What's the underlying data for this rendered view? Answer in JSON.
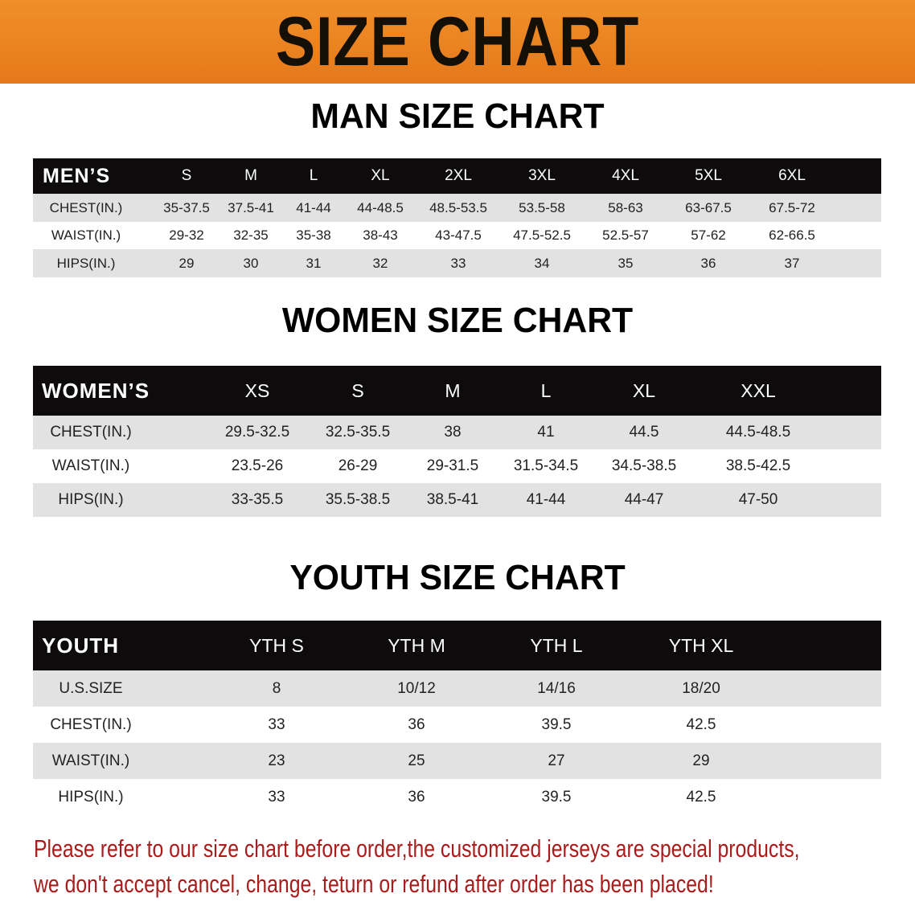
{
  "banner": {
    "title": "SIZE CHART",
    "color": "#e8821e"
  },
  "men": {
    "section_title": "MAN SIZE CHART",
    "header": "MEN’S",
    "sizes": [
      "S",
      "M",
      "L",
      "XL",
      "2XL",
      "3XL",
      "4XL",
      "5XL",
      "6XL"
    ],
    "rows": [
      {
        "label": "CHEST(IN.)",
        "values": [
          "35-37.5",
          "37.5-41",
          "41-44",
          "44-48.5",
          "48.5-53.5",
          "53.5-58",
          "58-63",
          "63-67.5",
          "67.5-72"
        ]
      },
      {
        "label": "WAIST(IN.)",
        "values": [
          "29-32",
          "32-35",
          "35-38",
          "38-43",
          "43-47.5",
          "47.5-52.5",
          "52.5-57",
          "57-62",
          "62-66.5"
        ]
      },
      {
        "label": "HIPS(IN.)",
        "values": [
          "29",
          "30",
          "31",
          "32",
          "33",
          "34",
          "35",
          "36",
          "37"
        ]
      }
    ]
  },
  "women": {
    "section_title": "WOMEN SIZE CHART",
    "header": "WOMEN’S",
    "sizes": [
      "XS",
      "S",
      "M",
      "L",
      "XL",
      "XXL"
    ],
    "rows": [
      {
        "label": "CHEST(IN.)",
        "values": [
          "29.5-32.5",
          "32.5-35.5",
          "38",
          "41",
          "44.5",
          "44.5-48.5"
        ]
      },
      {
        "label": "WAIST(IN.)",
        "values": [
          "23.5-26",
          "26-29",
          "29-31.5",
          "31.5-34.5",
          "34.5-38.5",
          "38.5-42.5"
        ]
      },
      {
        "label": "HIPS(IN.)",
        "values": [
          "33-35.5",
          "35.5-38.5",
          "38.5-41",
          "41-44",
          "44-47",
          "47-50"
        ]
      }
    ]
  },
  "youth": {
    "section_title": "YOUTH SIZE CHART",
    "header": "YOUTH",
    "sizes": [
      "YTH S",
      "YTH M",
      "YTH L",
      "YTH XL"
    ],
    "rows": [
      {
        "label": "U.S.SIZE",
        "values": [
          "8",
          "10/12",
          "14/16",
          "18/20"
        ]
      },
      {
        "label": "CHEST(IN.)",
        "values": [
          "33",
          "36",
          "39.5",
          "42.5"
        ]
      },
      {
        "label": "WAIST(IN.)",
        "values": [
          "23",
          "25",
          "27",
          "29"
        ]
      },
      {
        "label": "HIPS(IN.)",
        "values": [
          "33",
          "36",
          "39.5",
          "42.5"
        ]
      }
    ]
  },
  "notice": {
    "line1": "Please refer to our size chart before order,the customized jerseys are special products,",
    "line2": "we don't accept cancel, change, teturn or refund after order has been placed!",
    "color": "#a81c1c"
  }
}
